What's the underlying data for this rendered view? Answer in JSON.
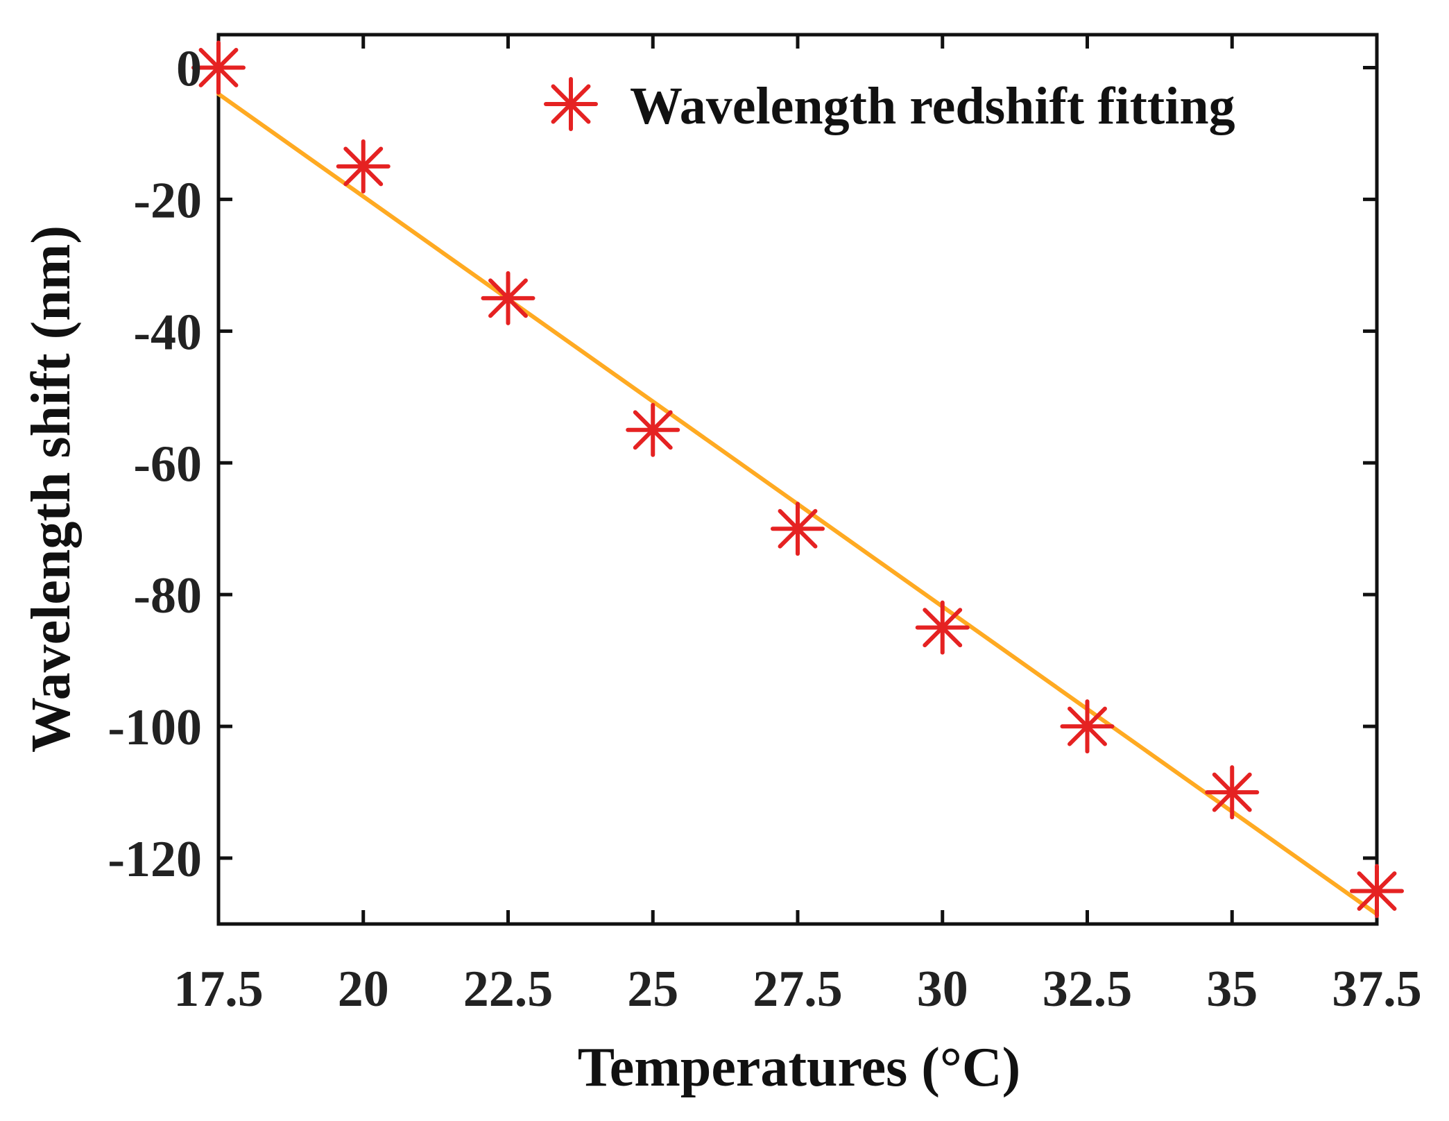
{
  "chart_data": {
    "type": "scatter",
    "title": "",
    "xlabel": "Temperatures (°C)",
    "ylabel": "Wavelength shift (nm)",
    "xlim": [
      17.5,
      37.5
    ],
    "ylim": [
      -130,
      5
    ],
    "xticks": [
      17.5,
      20,
      22.5,
      25,
      27.5,
      30,
      32.5,
      35,
      37.5
    ],
    "xtick_labels": [
      "17.5",
      "20",
      "22.5",
      "25",
      "27.5",
      "30",
      "32.5",
      "35",
      "37.5"
    ],
    "yticks": [
      0,
      -20,
      -40,
      -60,
      -80,
      -100,
      -120
    ],
    "ytick_labels": [
      "0",
      "-20",
      "-40",
      "-60",
      "-80",
      "-100",
      "-120"
    ],
    "series": [
      {
        "name": "Wavelength redshift fitting",
        "marker": "asterisk",
        "color": "#e52222",
        "x": [
          17.5,
          20,
          22.5,
          25,
          27.5,
          30,
          32.5,
          35,
          37.5
        ],
        "y": [
          0,
          -15,
          -35,
          -55,
          -70,
          -85,
          -100,
          -110,
          -125
        ]
      }
    ],
    "fit_line": {
      "color": "#ffaa22",
      "x": [
        17.5,
        37.5
      ],
      "y": [
        -4,
        -128.5
      ]
    },
    "legend": {
      "position": "top-right",
      "entries": [
        "Wavelength redshift fitting"
      ]
    },
    "grid": false
  }
}
